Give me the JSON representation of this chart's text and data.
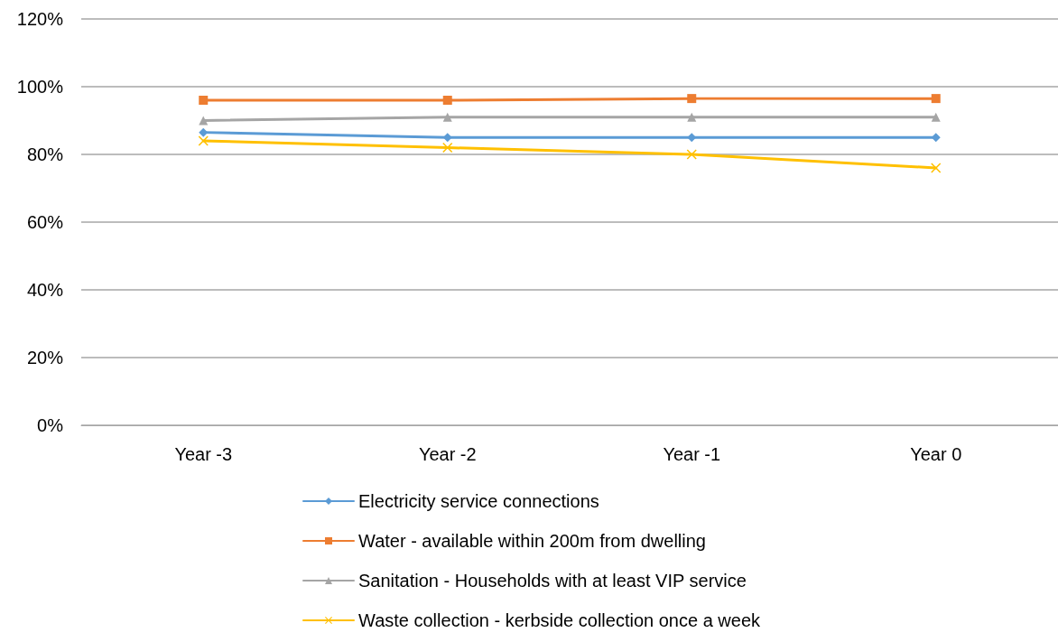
{
  "chart_data": {
    "type": "line",
    "categories": [
      "Year -3",
      "Year -2",
      "Year -1",
      "Year 0"
    ],
    "series": [
      {
        "name": "Electricity service connections",
        "color": "#5b9bd5",
        "marker": "diamond",
        "values": [
          86.5,
          85,
          85,
          85
        ]
      },
      {
        "name": "Water - available within 200m from dwelling",
        "color": "#ed7d31",
        "marker": "square",
        "values": [
          96,
          96,
          96.5,
          96.5
        ]
      },
      {
        "name": "Sanitation - Households with at least VIP service",
        "color": "#a5a5a5",
        "marker": "triangle",
        "values": [
          90,
          91,
          91,
          91
        ]
      },
      {
        "name": "Waste collection - kerbside collection once a week",
        "color": "#ffc000",
        "marker": "cross",
        "values": [
          84,
          82,
          80,
          76
        ]
      }
    ],
    "ylim": [
      0,
      120
    ],
    "yticks": [
      {
        "value": 0,
        "label": "0%"
      },
      {
        "value": 20,
        "label": "20%"
      },
      {
        "value": 40,
        "label": "40%"
      },
      {
        "value": 60,
        "label": "60%"
      },
      {
        "value": 80,
        "label": "80%"
      },
      {
        "value": 100,
        "label": "100%"
      },
      {
        "value": 120,
        "label": "120%"
      }
    ],
    "grid": "y",
    "legend": "bottom",
    "line_style": "solid"
  }
}
